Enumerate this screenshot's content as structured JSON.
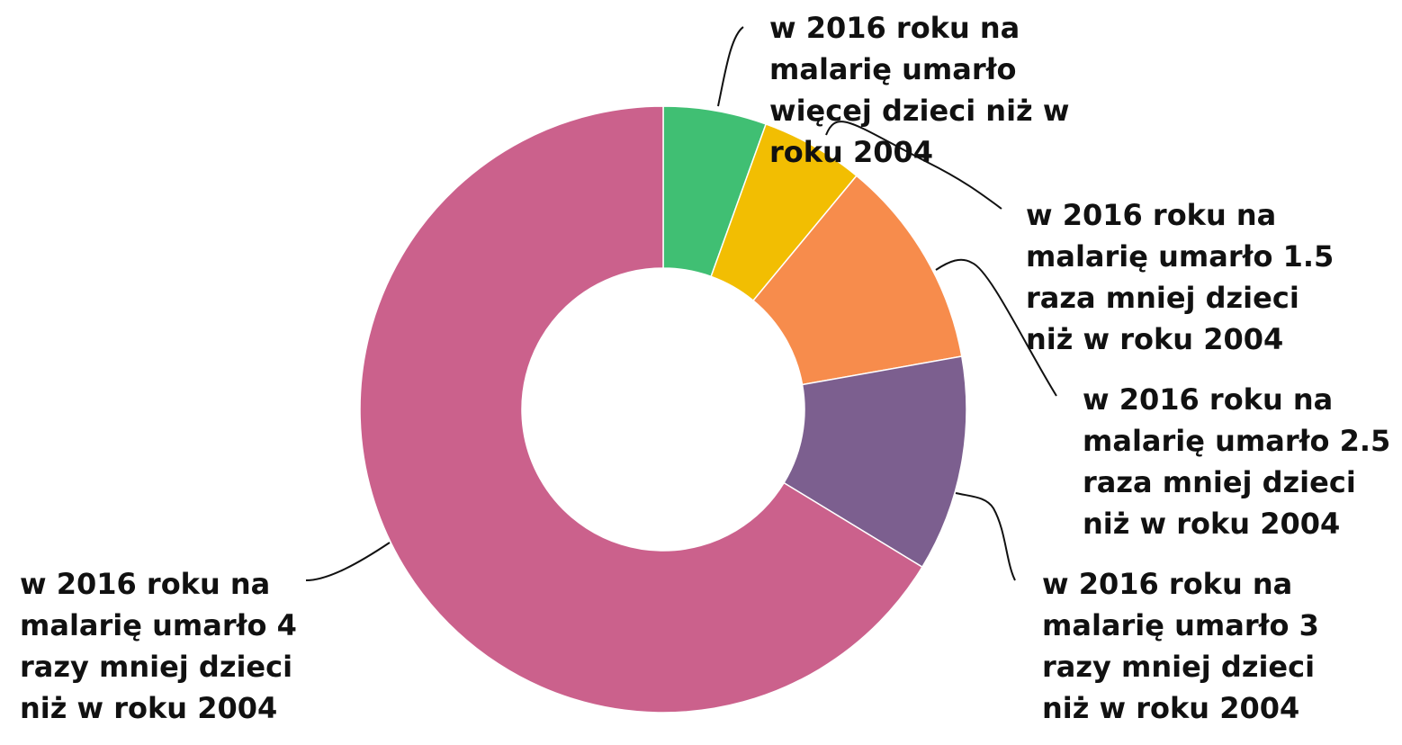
{
  "chart_data": {
    "type": "pie",
    "donut": true,
    "title": "",
    "slices": [
      {
        "label_lines": [
          "w 2016 roku na",
          "malarię umarło",
          "więcej dzieci niż w",
          "roku 2004"
        ],
        "value": 5.5,
        "color": "#40bf73"
      },
      {
        "label_lines": [
          "w 2016 roku na",
          "malarię umarło 1.5",
          "raza mniej dzieci",
          "niż w roku 2004"
        ],
        "value": 5.5,
        "color": "#f2be02"
      },
      {
        "label_lines": [
          "w 2016 roku na",
          "malarię umarło 2.5",
          "raza mniej dzieci",
          "niż w roku 2004"
        ],
        "value": 11.2,
        "color": "#f78c4c"
      },
      {
        "label_lines": [
          "w 2016 roku na",
          "malarię umarło 3",
          "razy mniej dzieci",
          "niż w roku 2004"
        ],
        "value": 11.5,
        "color": "#7c5f8f"
      },
      {
        "label_lines": [
          "w 2016 roku na",
          "malarię umarło 4",
          "razy mniej dzieci",
          "niż w roku 2004"
        ],
        "value": 66.3,
        "color": "#cb618c"
      }
    ]
  }
}
